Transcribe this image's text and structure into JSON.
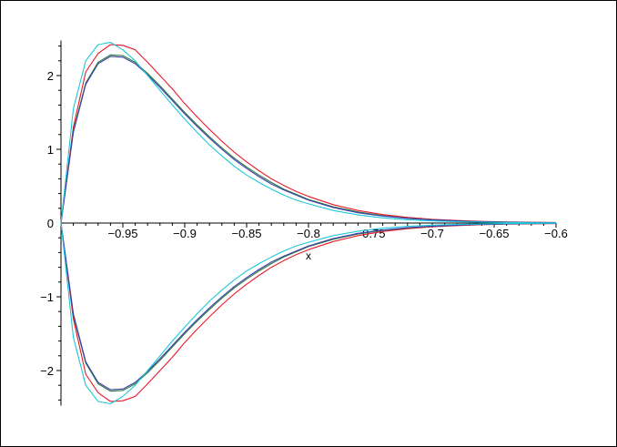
{
  "chart_data": {
    "type": "line",
    "title": "",
    "xlabel": "x",
    "ylabel": "",
    "xlim": [
      -1.0,
      -0.6
    ],
    "ylim": [
      -2.45,
      2.45
    ],
    "grid": false,
    "legend": "none",
    "x_ticks": [
      {
        "value": -0.95,
        "label": "−0.95"
      },
      {
        "value": -0.9,
        "label": "−0.9"
      },
      {
        "value": -0.85,
        "label": "−0.85"
      },
      {
        "value": -0.8,
        "label": "−0.8"
      },
      {
        "value": -0.75,
        "label": "−0.75"
      },
      {
        "value": -0.7,
        "label": "−0.7"
      },
      {
        "value": -0.65,
        "label": "−0.65"
      },
      {
        "value": -0.6,
        "label": "−0.6"
      }
    ],
    "y_ticks": [
      {
        "value": 2,
        "label": "2"
      },
      {
        "value": 1,
        "label": "1"
      },
      {
        "value": 0,
        "label": "0"
      },
      {
        "value": -1,
        "label": "−1"
      },
      {
        "value": -2,
        "label": "−2"
      }
    ],
    "series": [
      {
        "color": "#e8192c",
        "x": [
          -1.0,
          -0.99,
          -0.98,
          -0.97,
          -0.96,
          -0.95,
          -0.94,
          -0.93,
          -0.92,
          -0.91,
          -0.9,
          -0.89,
          -0.88,
          -0.87,
          -0.86,
          -0.85,
          -0.84,
          -0.83,
          -0.82,
          -0.81,
          -0.8,
          -0.78,
          -0.76,
          -0.74,
          -0.72,
          -0.7,
          -0.68,
          -0.66,
          -0.64,
          -0.62,
          -0.6
        ],
        "upper": [
          0.0,
          1.3,
          2.05,
          2.3,
          2.42,
          2.41,
          2.35,
          2.18,
          2.0,
          1.82,
          1.62,
          1.44,
          1.27,
          1.11,
          0.96,
          0.83,
          0.71,
          0.6,
          0.51,
          0.43,
          0.36,
          0.25,
          0.17,
          0.115,
          0.077,
          0.051,
          0.034,
          0.022,
          0.015,
          0.01,
          0.007
        ],
        "lower": [
          0.0,
          -1.3,
          -2.05,
          -2.3,
          -2.42,
          -2.41,
          -2.35,
          -2.18,
          -2.0,
          -1.82,
          -1.62,
          -1.44,
          -1.27,
          -1.11,
          -0.96,
          -0.83,
          -0.71,
          -0.6,
          -0.51,
          -0.43,
          -0.36,
          -0.25,
          -0.17,
          -0.115,
          -0.077,
          -0.051,
          -0.034,
          -0.022,
          -0.015,
          -0.01,
          -0.007
        ]
      },
      {
        "color": "#2d7a3a",
        "x": [
          -1.0,
          -0.99,
          -0.98,
          -0.97,
          -0.96,
          -0.95,
          -0.94,
          -0.93,
          -0.92,
          -0.91,
          -0.9,
          -0.89,
          -0.88,
          -0.87,
          -0.86,
          -0.85,
          -0.84,
          -0.83,
          -0.82,
          -0.81,
          -0.8,
          -0.78,
          -0.76,
          -0.74,
          -0.72,
          -0.7,
          -0.68,
          -0.66,
          -0.64,
          -0.62,
          -0.6
        ],
        "upper": [
          0.0,
          1.25,
          1.9,
          2.18,
          2.28,
          2.27,
          2.18,
          2.03,
          1.86,
          1.68,
          1.5,
          1.33,
          1.17,
          1.02,
          0.88,
          0.76,
          0.65,
          0.55,
          0.46,
          0.39,
          0.32,
          0.22,
          0.15,
          0.1,
          0.066,
          0.044,
          0.029,
          0.019,
          0.012,
          0.008,
          0.005
        ],
        "lower": [
          0.0,
          -1.25,
          -1.9,
          -2.18,
          -2.28,
          -2.27,
          -2.18,
          -2.03,
          -1.86,
          -1.68,
          -1.5,
          -1.33,
          -1.17,
          -1.02,
          -0.88,
          -0.76,
          -0.65,
          -0.55,
          -0.46,
          -0.39,
          -0.32,
          -0.22,
          -0.15,
          -0.1,
          -0.066,
          -0.044,
          -0.029,
          -0.019,
          -0.012,
          -0.008,
          -0.005
        ]
      },
      {
        "color": "#3a3fb0",
        "x": [
          -1.0,
          -0.99,
          -0.98,
          -0.97,
          -0.96,
          -0.95,
          -0.94,
          -0.93,
          -0.92,
          -0.91,
          -0.9,
          -0.89,
          -0.88,
          -0.87,
          -0.86,
          -0.85,
          -0.84,
          -0.83,
          -0.82,
          -0.81,
          -0.8,
          -0.78,
          -0.76,
          -0.74,
          -0.72,
          -0.7,
          -0.68,
          -0.66,
          -0.64,
          -0.62,
          -0.6
        ],
        "upper": [
          0.0,
          1.23,
          1.88,
          2.16,
          2.26,
          2.25,
          2.16,
          2.01,
          1.84,
          1.66,
          1.48,
          1.31,
          1.15,
          1.0,
          0.86,
          0.74,
          0.63,
          0.53,
          0.45,
          0.38,
          0.31,
          0.21,
          0.14,
          0.095,
          0.063,
          0.042,
          0.028,
          0.018,
          0.012,
          0.008,
          0.005
        ],
        "lower": [
          0.0,
          -1.23,
          -1.88,
          -2.16,
          -2.26,
          -2.25,
          -2.16,
          -2.01,
          -1.84,
          -1.66,
          -1.48,
          -1.31,
          -1.15,
          -1.0,
          -0.86,
          -0.74,
          -0.63,
          -0.53,
          -0.45,
          -0.38,
          -0.31,
          -0.21,
          -0.14,
          -0.095,
          -0.063,
          -0.042,
          -0.028,
          -0.018,
          -0.012,
          -0.008,
          -0.005
        ]
      },
      {
        "color": "#1ec8d8",
        "x": [
          -1.0,
          -0.99,
          -0.98,
          -0.97,
          -0.96,
          -0.95,
          -0.94,
          -0.93,
          -0.92,
          -0.91,
          -0.9,
          -0.89,
          -0.88,
          -0.87,
          -0.86,
          -0.85,
          -0.84,
          -0.83,
          -0.82,
          -0.81,
          -0.8,
          -0.78,
          -0.76,
          -0.74,
          -0.72,
          -0.7,
          -0.68,
          -0.66,
          -0.64,
          -0.62,
          -0.6
        ],
        "upper": [
          0.0,
          1.55,
          2.2,
          2.42,
          2.45,
          2.35,
          2.2,
          2.0,
          1.8,
          1.6,
          1.41,
          1.23,
          1.06,
          0.91,
          0.77,
          0.65,
          0.55,
          0.46,
          0.38,
          0.31,
          0.26,
          0.17,
          0.11,
          0.07,
          0.045,
          0.029,
          0.018,
          0.011,
          0.007,
          0.004,
          0.003
        ],
        "lower": [
          0.0,
          -1.55,
          -2.2,
          -2.42,
          -2.45,
          -2.35,
          -2.2,
          -2.0,
          -1.8,
          -1.6,
          -1.41,
          -1.23,
          -1.06,
          -0.91,
          -0.77,
          -0.65,
          -0.55,
          -0.46,
          -0.38,
          -0.31,
          -0.26,
          -0.17,
          -0.11,
          -0.07,
          -0.045,
          -0.029,
          -0.018,
          -0.011,
          -0.007,
          -0.004,
          -0.003
        ]
      }
    ]
  }
}
